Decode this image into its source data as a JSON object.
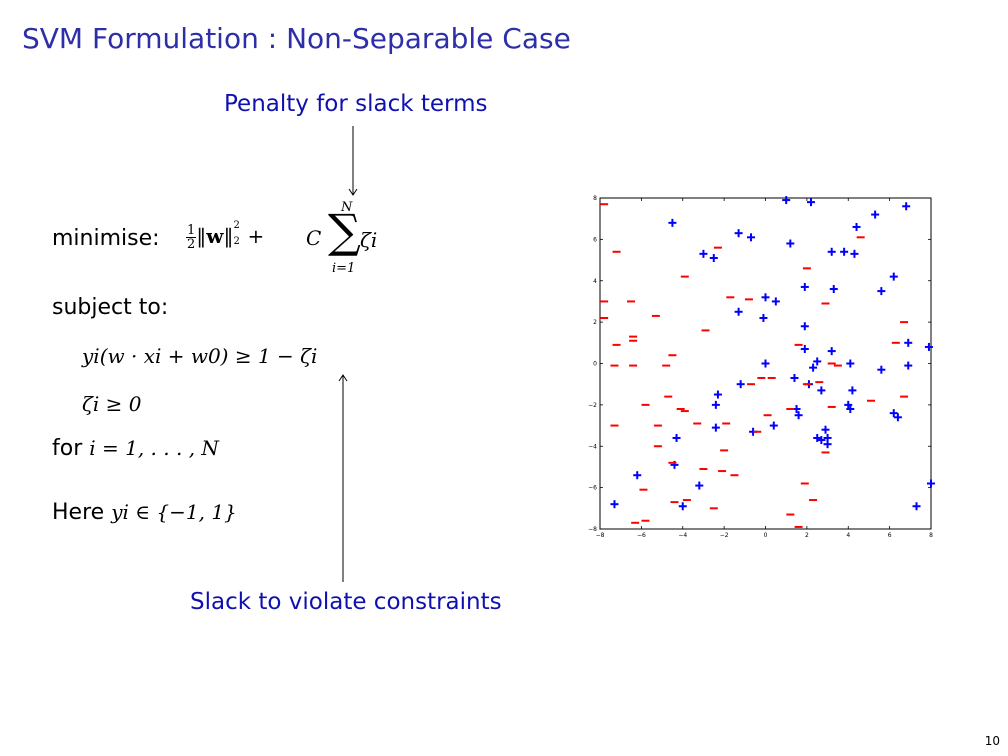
{
  "slide": {
    "title": "SVM Formulation : Non-Separable Case",
    "annotation_top": "Penalty for slack terms",
    "annotation_bottom": "Slack to violate constraints",
    "minimise_label": "minimise:",
    "subject_to_label": "subject to:",
    "for_label": "for",
    "here_label": "Here",
    "page_number": "10"
  },
  "math": {
    "frac_num": "1",
    "frac_den": "2",
    "C": "C",
    "sum_top": "N",
    "sum_bottom": "i=1",
    "zeta_i": "ζi",
    "constraint1": "yi(w · xi + w0) ≥ 1 − ζi",
    "constraint2": "ζi ≥ 0",
    "range": "i = 1, . . . , N",
    "label_set": "yi ∈ {−1, 1}"
  },
  "colors": {
    "title": "#2e2ea8",
    "annotation": "#1010b0",
    "plus_class": "#0000ff",
    "minus_class": "#ff0000"
  },
  "chart_data": {
    "type": "scatter",
    "xlim": [
      -8,
      8
    ],
    "ylim": [
      -8,
      8
    ],
    "x_ticks": [
      -8,
      -6,
      -4,
      -2,
      0,
      2,
      4,
      6,
      8
    ],
    "y_ticks": [
      -8,
      -6,
      -4,
      -2,
      0,
      2,
      4,
      6,
      8
    ],
    "x_tick_labels": [
      "−8",
      "−6",
      "−4",
      "−2",
      "0",
      "2",
      "4",
      "6",
      "8"
    ],
    "y_tick_labels": [
      "−8",
      "−6",
      "−4",
      "−2",
      "0",
      "2",
      "4",
      "6",
      "8"
    ],
    "grid": false,
    "series": [
      {
        "marker": "+",
        "color": "#0000ff",
        "points": [
          [
            -4.5,
            6.8
          ],
          [
            -3.0,
            5.3
          ],
          [
            -2.5,
            5.1
          ],
          [
            -1.3,
            6.3
          ],
          [
            -0.7,
            6.1
          ],
          [
            1.0,
            7.9
          ],
          [
            1.2,
            5.8
          ],
          [
            2.2,
            7.8
          ],
          [
            3.2,
            5.4
          ],
          [
            3.8,
            5.4
          ],
          [
            4.3,
            5.3
          ],
          [
            4.4,
            6.6
          ],
          [
            5.3,
            7.2
          ],
          [
            6.8,
            7.6
          ],
          [
            6.2,
            4.2
          ],
          [
            5.6,
            3.5
          ],
          [
            3.3,
            3.6
          ],
          [
            1.9,
            3.7
          ],
          [
            0.0,
            3.2
          ],
          [
            0.5,
            3.0
          ],
          [
            -1.3,
            2.5
          ],
          [
            -0.1,
            2.2
          ],
          [
            1.9,
            1.8
          ],
          [
            1.9,
            0.7
          ],
          [
            3.2,
            0.6
          ],
          [
            2.5,
            0.1
          ],
          [
            2.3,
            -0.2
          ],
          [
            4.1,
            0.0
          ],
          [
            5.6,
            -0.3
          ],
          [
            6.9,
            -0.1
          ],
          [
            6.9,
            1.0
          ],
          [
            7.9,
            0.8
          ],
          [
            1.4,
            -0.7
          ],
          [
            0.0,
            0.0
          ],
          [
            -1.2,
            -1.0
          ],
          [
            -2.3,
            -1.5
          ],
          [
            -2.4,
            -2.0
          ],
          [
            2.1,
            -1.0
          ],
          [
            2.7,
            -1.3
          ],
          [
            4.2,
            -1.3
          ],
          [
            4.0,
            -2.0
          ],
          [
            4.1,
            -2.2
          ],
          [
            6.2,
            -2.4
          ],
          [
            6.4,
            -2.6
          ],
          [
            1.5,
            -2.2
          ],
          [
            1.6,
            -2.5
          ],
          [
            0.4,
            -3.0
          ],
          [
            -0.6,
            -3.3
          ],
          [
            -2.4,
            -3.1
          ],
          [
            2.5,
            -3.6
          ],
          [
            2.7,
            -3.7
          ],
          [
            3.0,
            -3.9
          ],
          [
            2.9,
            -3.2
          ],
          [
            3.0,
            -3.6
          ],
          [
            -4.3,
            -3.6
          ],
          [
            -4.4,
            -4.9
          ],
          [
            -6.2,
            -5.4
          ],
          [
            -3.2,
            -5.9
          ],
          [
            -4.0,
            -6.9
          ],
          [
            -7.3,
            -6.8
          ],
          [
            7.3,
            -6.9
          ],
          [
            8.0,
            -5.8
          ]
        ]
      },
      {
        "marker": "-",
        "color": "#ff0000",
        "points": [
          [
            -7.8,
            7.7
          ],
          [
            -7.2,
            5.4
          ],
          [
            -2.3,
            5.6
          ],
          [
            -3.9,
            4.2
          ],
          [
            2.0,
            4.6
          ],
          [
            4.6,
            6.1
          ],
          [
            -1.7,
            3.2
          ],
          [
            -0.8,
            3.1
          ],
          [
            2.9,
            2.9
          ],
          [
            6.7,
            2.0
          ],
          [
            -7.8,
            3.0
          ],
          [
            -6.5,
            3.0
          ],
          [
            -7.8,
            2.2
          ],
          [
            -5.3,
            2.3
          ],
          [
            -2.9,
            1.6
          ],
          [
            -6.4,
            1.3
          ],
          [
            -6.4,
            1.1
          ],
          [
            -7.2,
            0.9
          ],
          [
            -4.5,
            0.4
          ],
          [
            -7.3,
            -0.1
          ],
          [
            -6.4,
            -0.1
          ],
          [
            -4.8,
            -0.1
          ],
          [
            1.6,
            0.9
          ],
          [
            3.2,
            0.0
          ],
          [
            3.5,
            -0.1
          ],
          [
            6.3,
            1.0
          ],
          [
            -0.2,
            -0.7
          ],
          [
            0.3,
            -0.7
          ],
          [
            -0.7,
            -1.0
          ],
          [
            2.0,
            -1.0
          ],
          [
            2.6,
            -0.9
          ],
          [
            5.1,
            -1.8
          ],
          [
            6.7,
            -1.6
          ],
          [
            -4.7,
            -1.6
          ],
          [
            -5.8,
            -2.0
          ],
          [
            -4.1,
            -2.2
          ],
          [
            -3.9,
            -2.3
          ],
          [
            1.2,
            -2.2
          ],
          [
            3.2,
            -2.1
          ],
          [
            0.1,
            -2.5
          ],
          [
            -7.3,
            -3.0
          ],
          [
            -5.2,
            -3.0
          ],
          [
            -3.3,
            -2.9
          ],
          [
            -1.9,
            -2.9
          ],
          [
            -0.4,
            -3.3
          ],
          [
            -5.2,
            -4.0
          ],
          [
            -2.0,
            -4.2
          ],
          [
            2.9,
            -4.3
          ],
          [
            -4.5,
            -4.8
          ],
          [
            -3.0,
            -5.1
          ],
          [
            -2.1,
            -5.2
          ],
          [
            -1.5,
            -5.4
          ],
          [
            -5.9,
            -6.1
          ],
          [
            1.9,
            -5.8
          ],
          [
            -4.4,
            -6.7
          ],
          [
            -3.8,
            -6.6
          ],
          [
            -2.5,
            -7.0
          ],
          [
            2.3,
            -6.6
          ],
          [
            1.2,
            -7.3
          ],
          [
            1.6,
            -7.9
          ],
          [
            -5.8,
            -7.6
          ],
          [
            -6.3,
            -7.7
          ]
        ]
      }
    ]
  }
}
